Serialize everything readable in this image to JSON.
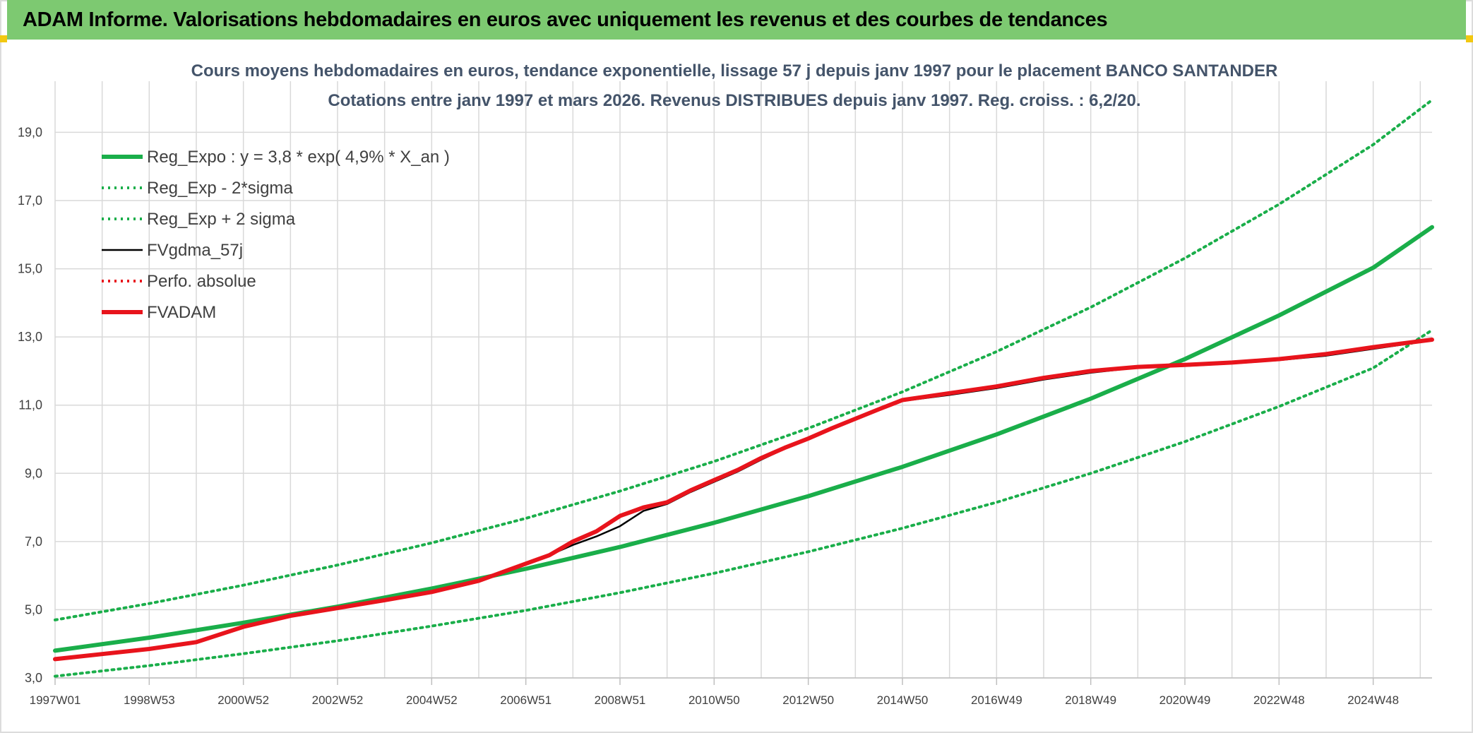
{
  "banner": {
    "title": "ADAM Informe. Valorisations hebdomadaires en euros avec uniquement les revenus et des courbes de tendances"
  },
  "colors": {
    "banner_bg": "#7dc971",
    "trend_green": "#1aae4a",
    "red": "#e8141c",
    "black": "#000000",
    "grid": "#d9d9d9",
    "title_text": "#44546a"
  },
  "chart_data": {
    "type": "line",
    "title_lines": [
      "Cours moyens hebdomadaires en euros, tendance exponentielle, lissage 57 j depuis janv 1997 pour le placement BANCO SANTANDER",
      "Cotations entre janv 1997 et mars 2026. Revenus DISTRIBUES depuis janv 1997. Reg. croiss. : 6,2/20."
    ],
    "x_range": [
      1997.0,
      2026.25
    ],
    "ylim": [
      3.0,
      20.5
    ],
    "y_ticks": [
      3.0,
      5.0,
      7.0,
      9.0,
      11.0,
      13.0,
      15.0,
      17.0,
      19.0
    ],
    "y_tick_labels": [
      "3,0",
      "5,0",
      "7,0",
      "9,0",
      "11,0",
      "13,0",
      "15,0",
      "17,0",
      "19,0"
    ],
    "x_ticks": [
      1997.0,
      1999.0,
      2001.0,
      2003.0,
      2005.0,
      2007.0,
      2009.0,
      2011.0,
      2013.0,
      2015.0,
      2017.0,
      2019.0,
      2021.0,
      2023.0,
      2025.0
    ],
    "x_tick_labels": [
      "1997W01",
      "1998W53",
      "2000W52",
      "2002W52",
      "2004W52",
      "2006W51",
      "2008W51",
      "2010W50",
      "2012W50",
      "2014W50",
      "2016W49",
      "2018W49",
      "2020W49",
      "2022W48",
      "2024W48"
    ],
    "grid": true,
    "legend_position": "top-left",
    "series": [
      {
        "name": "Reg_Expo : y = 3,8 * exp( 4,9% *  X_an )",
        "style": "solid-thick",
        "color": "#1aae4a",
        "x": [
          1997,
          1999,
          2001,
          2003,
          2005,
          2007,
          2009,
          2011,
          2013,
          2015,
          2017,
          2019,
          2021,
          2023,
          2025,
          2026.25
        ],
        "values": [
          3.8,
          4.18,
          4.62,
          5.09,
          5.62,
          6.2,
          6.84,
          7.55,
          8.33,
          9.19,
          10.14,
          11.19,
          12.35,
          13.63,
          15.03,
          16.22
        ]
      },
      {
        "name": "Reg_Exp - 2*sigma",
        "style": "dotted",
        "color": "#1aae4a",
        "x": [
          1997,
          1999,
          2001,
          2003,
          2005,
          2007,
          2009,
          2011,
          2013,
          2015,
          2017,
          2019,
          2021,
          2023,
          2025,
          2026.25
        ],
        "values": [
          3.05,
          3.36,
          3.71,
          4.09,
          4.52,
          4.98,
          5.5,
          6.07,
          6.7,
          7.39,
          8.15,
          9.0,
          9.93,
          10.96,
          12.09,
          13.2
        ]
      },
      {
        "name": "Reg_Exp + 2 sigma",
        "style": "dotted",
        "color": "#1aae4a",
        "x": [
          1997,
          1999,
          2001,
          2003,
          2005,
          2007,
          2009,
          2011,
          2013,
          2015,
          2017,
          2019,
          2021,
          2023,
          2025,
          2026.25
        ],
        "values": [
          4.7,
          5.18,
          5.72,
          6.31,
          6.96,
          7.68,
          8.48,
          9.35,
          10.32,
          11.39,
          12.57,
          13.87,
          15.31,
          16.89,
          18.64,
          19.95
        ]
      },
      {
        "name": "FVgdma_57j",
        "style": "solid",
        "color": "#000000",
        "x": [
          1997,
          1998,
          1999,
          2000,
          2001,
          2002,
          2003,
          2004,
          2005,
          2006,
          2006.5,
          2007,
          2007.5,
          2008,
          2008.5,
          2009,
          2009.5,
          2010,
          2010.5,
          2011,
          2011.5,
          2012,
          2012.5,
          2013,
          2013.5,
          2014,
          2014.5,
          2015,
          2016,
          2017,
          2018,
          2019,
          2020,
          2021,
          2022,
          2023,
          2024,
          2025,
          2026.25
        ],
        "values": [
          3.55,
          3.7,
          3.85,
          4.05,
          4.5,
          4.82,
          5.05,
          5.28,
          5.52,
          5.85,
          6.1,
          6.35,
          6.6,
          6.9,
          7.15,
          7.45,
          7.9,
          8.1,
          8.45,
          8.75,
          9.05,
          9.4,
          9.72,
          10.0,
          10.3,
          10.58,
          10.85,
          11.12,
          11.3,
          11.5,
          11.75,
          11.95,
          12.1,
          12.15,
          12.22,
          12.32,
          12.45,
          12.65,
          12.9
        ]
      },
      {
        "name": "Perfo. absolue",
        "style": "dotted",
        "color": "#e8141c",
        "x": [],
        "values": []
      },
      {
        "name": "FVADAM",
        "style": "solid-thick",
        "color": "#e8141c",
        "x": [
          1997,
          1998,
          1999,
          2000,
          2001,
          2002,
          2003,
          2004,
          2005,
          2006,
          2006.5,
          2007,
          2007.5,
          2008,
          2008.5,
          2009,
          2009.5,
          2010,
          2010.5,
          2011,
          2011.5,
          2012,
          2012.5,
          2013,
          2013.5,
          2014,
          2014.5,
          2015,
          2016,
          2017,
          2018,
          2019,
          2020,
          2021,
          2022,
          2023,
          2024,
          2025,
          2026.25
        ],
        "values": [
          3.55,
          3.7,
          3.85,
          4.05,
          4.5,
          4.82,
          5.05,
          5.28,
          5.52,
          5.85,
          6.1,
          6.35,
          6.6,
          7.0,
          7.3,
          7.75,
          8.0,
          8.15,
          8.5,
          8.8,
          9.1,
          9.45,
          9.75,
          10.02,
          10.32,
          10.6,
          10.88,
          11.15,
          11.35,
          11.55,
          11.8,
          12.0,
          12.12,
          12.18,
          12.25,
          12.35,
          12.5,
          12.7,
          12.92
        ]
      }
    ]
  }
}
